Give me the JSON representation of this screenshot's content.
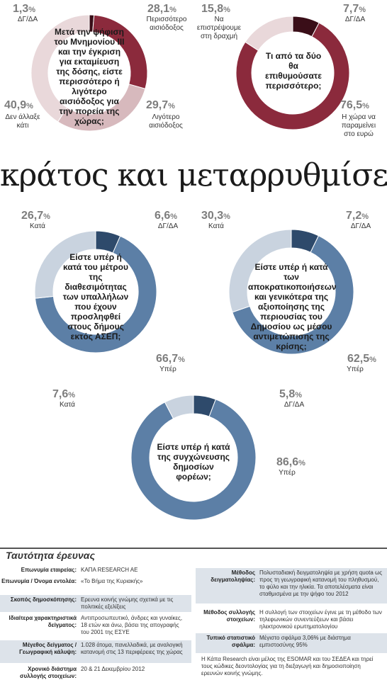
{
  "headline": "κράτος και μεταρρυθμίσεις",
  "colors": {
    "dark_red": "#6b1d2c",
    "mid_red": "#8b2a3c",
    "pink": "#d7b9bd",
    "light_pink": "#e9d8da",
    "near_black_red": "#3a0e18",
    "blue": "#5c7fa6",
    "light_blue": "#c9d3df",
    "navy": "#2e4a6b",
    "percent_gray": "#7d7d7d"
  },
  "chart_data": [
    {
      "type": "pie",
      "title": "Μετά την ψήφιση του Μνημονίου ΙΙΙ και την έγκριση για εκταμίευση της δόσης, είστε περισσότερο ή λιγότερο αισιόδοξος για την πορεία της χώρας;",
      "slices": [
        {
          "label": "ΔΓ/ΔΑ",
          "value": 1.3,
          "display": "1,3"
        },
        {
          "label": "Περισσότερο αισιόδοξος",
          "value": 28.1,
          "display": "28,1"
        },
        {
          "label": "Λιγότερο αισιόδοξος",
          "value": 29.7,
          "display": "29,7"
        },
        {
          "label": "Δεν άλλαξε κάτι",
          "value": 40.9,
          "display": "40,9"
        }
      ]
    },
    {
      "type": "pie",
      "title": "Τι από τα δύο θα επιθυμούσατε περισσότερο;",
      "slices": [
        {
          "label": "ΔΓ/ΔΑ",
          "value": 7.7,
          "display": "7,7"
        },
        {
          "label": "Η χώρα να παραμείνει στο ευρώ",
          "value": 76.5,
          "display": "76,5"
        },
        {
          "label": "Να επιστρέψουμε στη δραχμή",
          "value": 15.8,
          "display": "15,8"
        }
      ]
    },
    {
      "type": "pie",
      "title": "Είστε υπέρ ή κατά του μέτρου της διαθεσιμότητας των υπαλλήλων που έχουν προσληφθεί στους δήμους εκτός ΑΣΕΠ;",
      "slices": [
        {
          "label": "ΔΓ/ΔΑ",
          "value": 6.6,
          "display": "6,6"
        },
        {
          "label": "Υπέρ",
          "value": 66.7,
          "display": "66,7"
        },
        {
          "label": "Κατά",
          "value": 26.7,
          "display": "26,7"
        }
      ]
    },
    {
      "type": "pie",
      "title": "Είστε υπέρ ή κατά των αποκρατικοποιήσεων και γενικότερα της αξιοποίησης της περιουσίας του Δημοσίου ως μέσου αντιμετώπισης της κρίσης;",
      "slices": [
        {
          "label": "ΔΓ/ΔΑ",
          "value": 7.2,
          "display": "7,2"
        },
        {
          "label": "Υπέρ",
          "value": 62.5,
          "display": "62,5"
        },
        {
          "label": "Κατά",
          "value": 30.3,
          "display": "30,3"
        }
      ]
    },
    {
      "type": "pie",
      "title": "Είστε υπέρ ή κατά της συγχώνευσης δημοσίων φορέων;",
      "slices": [
        {
          "label": "ΔΓ/ΔΑ",
          "value": 5.8,
          "display": "5,8"
        },
        {
          "label": "Υπέρ",
          "value": 86.6,
          "display": "86,6"
        },
        {
          "label": "Κατά",
          "value": 7.6,
          "display": "7,6"
        }
      ]
    }
  ],
  "survey": {
    "title": "Ταυτότητα έρευνας",
    "left_rows": [
      {
        "key": "Επωνυμία εταιρείας:",
        "value": "ΚΑΠΑ RESEARCH AE"
      },
      {
        "key": "Επωνυμία / Όνομα εντολέα:",
        "value": "«Το Βήμα της Κυριακής»"
      },
      {
        "key": "Σκοπός δημοσκόπησης:",
        "value": "Ερευνα κοινής γνώμης σχετικά με τις πολιτικές εξελίξεις"
      },
      {
        "key": "Ιδιαίτερα χαρακτηριστικά δείγματος:",
        "value": "Αντιπροσωπευτικό, άνδρες και γυναίκες, 18 ετών και άνω, βάσει της απογραφής του 2001 της ΕΣΥΕ"
      },
      {
        "key": "Μέγεθος δείγματος / Γεωγραφική κάλυψη:",
        "value": "1.028 άτομα, πανελλαδικά, με αναλογική κατανομή στις 13 περιφέρειες της χώρας"
      },
      {
        "key": "Χρονικό διάστημα συλλογής στοιχείων:",
        "value": "20 & 21 Δεκεμβρίου 2012"
      }
    ],
    "right_rows": [
      {
        "key": "Μέθοδος δειγματοληψίας:",
        "value": "Πολυσταδιακή δειγματοληψία με χρήση quota ως προς τη γεωγραφική κατανομή του πληθυσμού, το φύλο και την ηλικία. Τα αποτελέσματα είναι σταθμισμένα με την ψήφο του 2012"
      },
      {
        "key": "Μέθοδος συλλογής στοιχείων:",
        "value": "Η συλλογή των στοιχείων έγινε με τη μέθοδο των τηλεφωνικών συνεντεύξεων και βάσει ηλεκτρονικού ερωτηματολογίου"
      },
      {
        "key": "Τυπικό στατιστικό σφάλμα:",
        "value": "Μέγιστο σφάλμα 3,06% με διάστημα εμπιστοσύνης 95%"
      }
    ],
    "note": "Η Κάπα Research είναι μέλος της ESOMAR και του ΣΕΔΕΑ και τηρεί τους κώδικες δεοντολογίας για τη διεξαγωγή και δημοσιοποίηση ερευνών κοινής γνώμης."
  }
}
